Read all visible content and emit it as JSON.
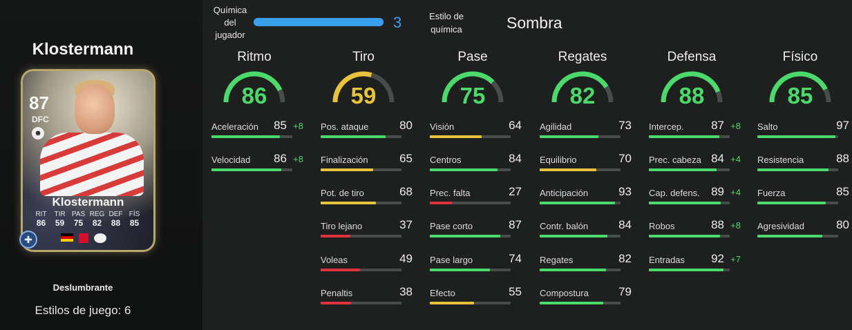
{
  "player": {
    "name": "Klostermann",
    "card": {
      "rating": "87",
      "position": "DFC",
      "name": "Klostermann",
      "stats": [
        {
          "label": "RIT",
          "value": "86"
        },
        {
          "label": "TIR",
          "value": "59"
        },
        {
          "label": "PAS",
          "value": "75"
        },
        {
          "label": "REG",
          "value": "82"
        },
        {
          "label": "DEF",
          "value": "88"
        },
        {
          "label": "FÍS",
          "value": "85"
        }
      ]
    },
    "chem_style_card": "Deslumbrante",
    "playstyles": "Estilos de juego: 6"
  },
  "chemistry": {
    "label": "Química del jugador",
    "value": "3",
    "progress": 1.0,
    "color": "#3aa0ee",
    "style_label": "Estilo de química",
    "style_value": "Sombra"
  },
  "colors": {
    "green": "#4cd96b",
    "yellow": "#e8c23c",
    "red": "#e0323c",
    "blue": "#3aa0ee"
  },
  "categories": [
    {
      "title": "Ritmo",
      "value": "86",
      "color": "green",
      "stats": [
        {
          "name": "Aceleración",
          "value": "85",
          "boost": "+8",
          "color": "green"
        },
        {
          "name": "Velocidad",
          "value": "86",
          "boost": "+8",
          "color": "green"
        }
      ]
    },
    {
      "title": "Tiro",
      "value": "59",
      "color": "yellow",
      "stats": [
        {
          "name": "Pos. ataque",
          "value": "80",
          "boost": "",
          "color": "green"
        },
        {
          "name": "Finalización",
          "value": "65",
          "boost": "",
          "color": "yellow"
        },
        {
          "name": "Pot. de tiro",
          "value": "68",
          "boost": "",
          "color": "yellow"
        },
        {
          "name": "Tiro lejano",
          "value": "37",
          "boost": "",
          "color": "red"
        },
        {
          "name": "Voleas",
          "value": "49",
          "boost": "",
          "color": "red"
        },
        {
          "name": "Penaltis",
          "value": "38",
          "boost": "",
          "color": "red"
        }
      ]
    },
    {
      "title": "Pase",
      "value": "75",
      "color": "green",
      "stats": [
        {
          "name": "Visión",
          "value": "64",
          "boost": "",
          "color": "yellow"
        },
        {
          "name": "Centros",
          "value": "84",
          "boost": "",
          "color": "green"
        },
        {
          "name": "Prec. falta",
          "value": "27",
          "boost": "",
          "color": "red"
        },
        {
          "name": "Pase corto",
          "value": "87",
          "boost": "",
          "color": "green"
        },
        {
          "name": "Pase largo",
          "value": "74",
          "boost": "",
          "color": "green"
        },
        {
          "name": "Efecto",
          "value": "55",
          "boost": "",
          "color": "yellow"
        }
      ]
    },
    {
      "title": "Regates",
      "value": "82",
      "color": "green",
      "stats": [
        {
          "name": "Agilidad",
          "value": "73",
          "boost": "",
          "color": "green"
        },
        {
          "name": "Equilibrio",
          "value": "70",
          "boost": "",
          "color": "yellow"
        },
        {
          "name": "Anticipación",
          "value": "93",
          "boost": "",
          "color": "green"
        },
        {
          "name": "Contr. balón",
          "value": "84",
          "boost": "",
          "color": "green"
        },
        {
          "name": "Regates",
          "value": "82",
          "boost": "",
          "color": "green"
        },
        {
          "name": "Compostura",
          "value": "79",
          "boost": "",
          "color": "green"
        }
      ]
    },
    {
      "title": "Defensa",
      "value": "88",
      "color": "green",
      "stats": [
        {
          "name": "Intercep.",
          "value": "87",
          "boost": "+8",
          "color": "green"
        },
        {
          "name": "Prec. cabeza",
          "value": "84",
          "boost": "+4",
          "color": "green"
        },
        {
          "name": "Cap. defens.",
          "value": "89",
          "boost": "+4",
          "color": "green"
        },
        {
          "name": "Robos",
          "value": "88",
          "boost": "+8",
          "color": "green"
        },
        {
          "name": "Entradas",
          "value": "92",
          "boost": "+7",
          "color": "green"
        }
      ]
    },
    {
      "title": "Físico",
      "value": "85",
      "color": "green",
      "stats": [
        {
          "name": "Salto",
          "value": "97",
          "boost": "",
          "color": "green"
        },
        {
          "name": "Resistencia",
          "value": "88",
          "boost": "",
          "color": "green"
        },
        {
          "name": "Fuerza",
          "value": "85",
          "boost": "",
          "color": "green"
        },
        {
          "name": "Agresividad",
          "value": "80",
          "boost": "",
          "color": "green"
        }
      ]
    }
  ]
}
